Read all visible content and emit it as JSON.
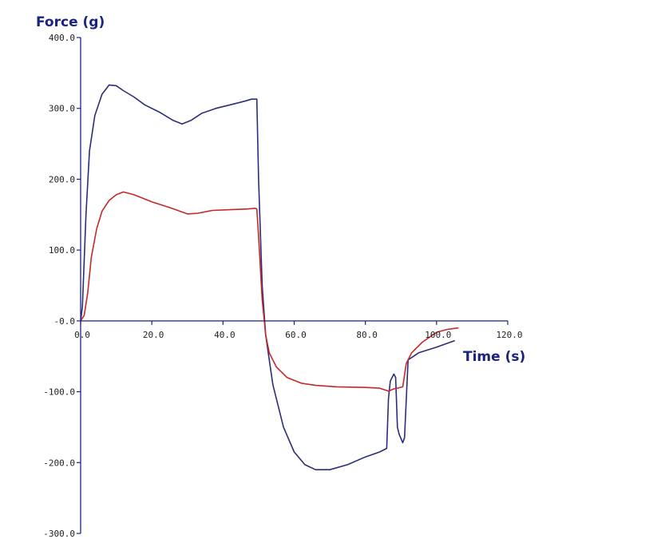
{
  "chart_data": {
    "type": "line",
    "ylabel": "Force (g)",
    "xlabel": "Time  (s)",
    "xlim": [
      0,
      120
    ],
    "ylim": [
      -300,
      400
    ],
    "x_ticks": [
      0,
      20,
      40,
      60,
      80,
      100,
      120
    ],
    "x_tick_labels": [
      "0.0",
      "20.0",
      "40.0",
      "60.0",
      "80.0",
      "100.0",
      "120.0"
    ],
    "y_ticks": [
      400,
      300,
      200,
      100,
      0,
      -100,
      -200,
      -300
    ],
    "y_tick_labels": [
      "400.0",
      "300.0",
      "200.0",
      "100.0",
      "-0.0",
      "-100.0",
      "-200.0",
      "-300.0"
    ],
    "grid": false,
    "colors": {
      "axis": "#1a237e",
      "series_1": "#2b2d7a",
      "series_2": "#c62828",
      "label": "#1a237e"
    },
    "series": [
      {
        "color": "#2b2d7a",
        "points": [
          [
            0,
            0
          ],
          [
            0.5,
            20
          ],
          [
            1.5,
            150
          ],
          [
            2.5,
            240
          ],
          [
            4,
            290
          ],
          [
            6,
            320
          ],
          [
            8,
            333
          ],
          [
            10,
            332
          ],
          [
            12,
            325
          ],
          [
            15,
            316
          ],
          [
            18,
            305
          ],
          [
            22,
            295
          ],
          [
            26,
            283
          ],
          [
            28.5,
            278
          ],
          [
            31,
            283
          ],
          [
            34,
            293
          ],
          [
            38,
            300
          ],
          [
            42,
            305
          ],
          [
            46,
            310
          ],
          [
            48,
            313
          ],
          [
            49.5,
            313
          ],
          [
            50,
            200
          ],
          [
            51,
            50
          ],
          [
            52,
            -20
          ],
          [
            54,
            -90
          ],
          [
            57,
            -150
          ],
          [
            60,
            -185
          ],
          [
            63,
            -203
          ],
          [
            66,
            -210
          ],
          [
            70,
            -210
          ],
          [
            75,
            -203
          ],
          [
            80,
            -192
          ],
          [
            84,
            -185
          ],
          [
            86,
            -180
          ],
          [
            86.5,
            -110
          ],
          [
            87,
            -85
          ],
          [
            88,
            -75
          ],
          [
            88.5,
            -80
          ],
          [
            89,
            -150
          ],
          [
            89.5,
            -160
          ],
          [
            90.5,
            -172
          ],
          [
            91,
            -165
          ],
          [
            92,
            -55
          ],
          [
            95,
            -45
          ],
          [
            100,
            -37
          ],
          [
            105,
            -28
          ]
        ]
      },
      {
        "color": "#c62828",
        "points": [
          [
            0,
            0
          ],
          [
            1,
            8
          ],
          [
            2,
            40
          ],
          [
            3,
            90
          ],
          [
            4.5,
            130
          ],
          [
            6,
            155
          ],
          [
            8,
            170
          ],
          [
            10,
            178
          ],
          [
            12,
            182
          ],
          [
            15,
            178
          ],
          [
            20,
            168
          ],
          [
            25,
            160
          ],
          [
            30,
            151
          ],
          [
            33,
            152
          ],
          [
            37,
            156
          ],
          [
            42,
            157
          ],
          [
            47,
            158
          ],
          [
            49,
            159
          ],
          [
            49.5,
            158
          ],
          [
            50,
            120
          ],
          [
            51,
            30
          ],
          [
            52,
            -20
          ],
          [
            53,
            -45
          ],
          [
            55,
            -65
          ],
          [
            58,
            -80
          ],
          [
            62,
            -88
          ],
          [
            66,
            -91
          ],
          [
            72,
            -93
          ],
          [
            80,
            -94
          ],
          [
            84,
            -95
          ],
          [
            86.5,
            -99
          ],
          [
            88,
            -96
          ],
          [
            89,
            -95
          ],
          [
            90.5,
            -93
          ],
          [
            91.5,
            -60
          ],
          [
            93,
            -45
          ],
          [
            96,
            -30
          ],
          [
            100,
            -16
          ],
          [
            103,
            -12
          ],
          [
            106,
            -10
          ]
        ]
      }
    ]
  }
}
